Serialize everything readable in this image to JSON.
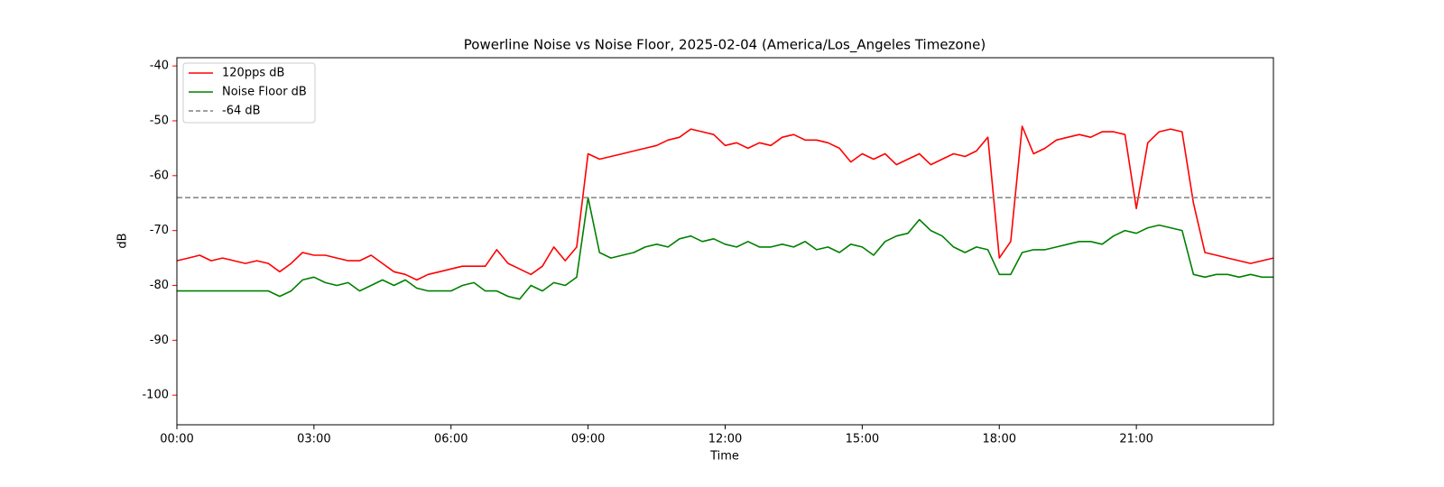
{
  "chart_data": {
    "type": "line",
    "title": "Powerline Noise vs Noise Floor, 2025-02-04 (America/Los_Angeles Timezone)",
    "xlabel": "Time",
    "ylabel": "dB",
    "x": [
      0,
      0.25,
      0.5,
      0.75,
      1,
      1.25,
      1.5,
      1.75,
      2,
      2.25,
      2.5,
      2.75,
      3,
      3.25,
      3.5,
      3.75,
      4,
      4.25,
      4.5,
      4.75,
      5,
      5.25,
      5.5,
      5.75,
      6,
      6.25,
      6.5,
      6.75,
      7,
      7.25,
      7.5,
      7.75,
      8,
      8.25,
      8.5,
      8.75,
      9,
      9.25,
      9.5,
      9.75,
      10,
      10.25,
      10.5,
      10.75,
      11,
      11.25,
      11.5,
      11.75,
      12,
      12.25,
      12.5,
      12.75,
      13,
      13.25,
      13.5,
      13.75,
      14,
      14.25,
      14.5,
      14.75,
      15,
      15.25,
      15.5,
      15.75,
      16,
      16.25,
      16.5,
      16.75,
      17,
      17.25,
      17.5,
      17.75,
      18,
      18.25,
      18.5,
      18.75,
      19,
      19.25,
      19.5,
      19.75,
      20,
      20.25,
      20.5,
      20.75,
      21,
      21.25,
      21.5,
      21.75,
      22,
      22.25,
      22.5,
      22.75,
      23,
      23.25,
      23.5,
      23.75,
      24
    ],
    "series": [
      {
        "name": "120pps dB",
        "color": "#ff0000",
        "values": [
          -75.5,
          -75,
          -74.5,
          -75.5,
          -75,
          -75.5,
          -76,
          -75.5,
          -76,
          -77.5,
          -76,
          -74,
          -74.5,
          -74.5,
          -75,
          -75.5,
          -75.5,
          -74.5,
          -76,
          -77.5,
          -78,
          -79,
          -78,
          -77.5,
          -77,
          -76.5,
          -76.5,
          -76.5,
          -73.5,
          -76,
          -77,
          -78,
          -76.5,
          -73,
          -75.5,
          -73,
          -56,
          -57,
          -56.5,
          -56,
          -55.5,
          -55,
          -54.5,
          -53.5,
          -53,
          -51.5,
          -52,
          -52.5,
          -54.5,
          -54,
          -55,
          -54,
          -54.5,
          -53,
          -52.5,
          -53.5,
          -53.5,
          -54,
          -55,
          -57.5,
          -56,
          -57,
          -56,
          -58,
          -57,
          -56,
          -58,
          -57,
          -56,
          -56.5,
          -55.5,
          -53,
          -75,
          -72,
          -51,
          -56,
          -55,
          -53.5,
          -53,
          -52.5,
          -53,
          -52,
          -52,
          -52.5,
          -66,
          -54,
          -52,
          -51.5,
          -52,
          -65,
          -74,
          -74.5,
          -75,
          -75.5,
          -76,
          -75.5,
          -75
        ]
      },
      {
        "name": "Noise Floor dB",
        "color": "#008000",
        "values": [
          -81,
          -81,
          -81,
          -81,
          -81,
          -81,
          -81,
          -81,
          -81,
          -82,
          -81,
          -79,
          -78.5,
          -79.5,
          -80,
          -79.5,
          -81,
          -80,
          -79,
          -80,
          -79,
          -80.5,
          -81,
          -81,
          -81,
          -80,
          -79.5,
          -81,
          -81,
          -82,
          -82.5,
          -80,
          -81,
          -79.5,
          -80,
          -78.5,
          -64,
          -74,
          -75,
          -74.5,
          -74,
          -73,
          -72.5,
          -73,
          -71.5,
          -71,
          -72,
          -71.5,
          -72.5,
          -73,
          -72,
          -73,
          -73,
          -72.5,
          -73,
          -72,
          -73.5,
          -73,
          -74,
          -72.5,
          -73,
          -74.5,
          -72,
          -71,
          -70.5,
          -68,
          -70,
          -71,
          -73,
          -74,
          -73,
          -73.5,
          -78,
          -78,
          -74,
          -73.5,
          -73.5,
          -73,
          -72.5,
          -72,
          -72,
          -72.5,
          -71,
          -70,
          -70.5,
          -69.5,
          -69,
          -69.5,
          -70,
          -78,
          -78.5,
          -78,
          -78,
          -78.5,
          -78,
          -78.5,
          -78.5
        ]
      }
    ],
    "reference_line": {
      "name": "-64 dB",
      "value": -64,
      "color": "#808080"
    },
    "xlim": [
      0,
      24
    ],
    "xticks": [
      {
        "value": 0,
        "label": "00:00"
      },
      {
        "value": 3,
        "label": "03:00"
      },
      {
        "value": 6,
        "label": "06:00"
      },
      {
        "value": 9,
        "label": "09:00"
      },
      {
        "value": 12,
        "label": "12:00"
      },
      {
        "value": 15,
        "label": "15:00"
      },
      {
        "value": 18,
        "label": "18:00"
      },
      {
        "value": 21,
        "label": "21:00"
      }
    ],
    "ylim": [
      -105.4,
      -38.5
    ],
    "yticks": [
      -40,
      -50,
      -60,
      -70,
      -80,
      -90,
      -100
    ],
    "axis_color": "#ff0000",
    "legend": "upper left"
  }
}
